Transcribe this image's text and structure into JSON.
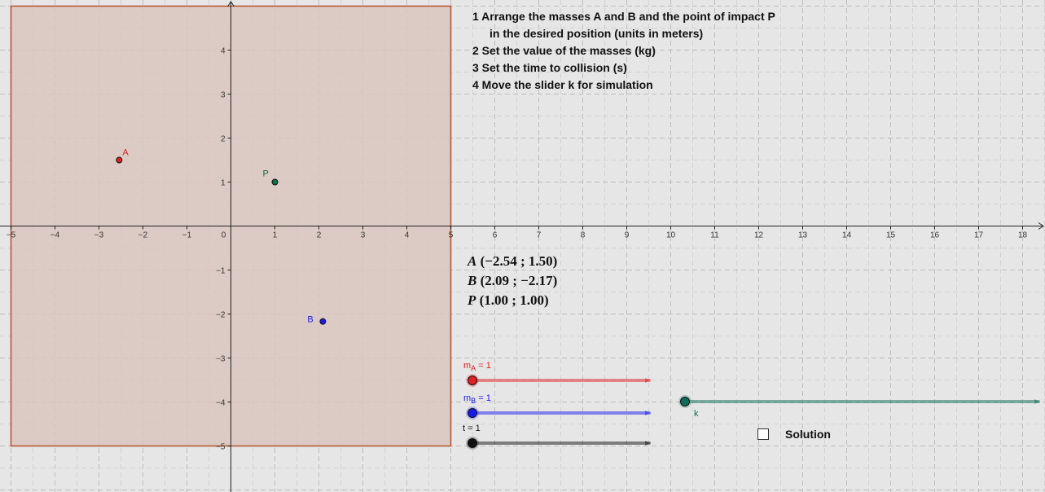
{
  "graph": {
    "x_ticks": [
      "−5",
      "−4",
      "−3",
      "−2",
      "−1",
      "0",
      "1",
      "2",
      "3",
      "4",
      "5",
      "6",
      "7",
      "8",
      "9",
      "10",
      "11",
      "12",
      "13",
      "14",
      "15",
      "16",
      "17",
      "18"
    ],
    "y_ticks": [
      "4",
      "3",
      "2",
      "1",
      "−1",
      "−2",
      "−3",
      "−4",
      "−5"
    ],
    "region_color": "#d9c5bd",
    "region_border_color": "#b5502a"
  },
  "points": [
    {
      "label": "A",
      "x": -2.54,
      "y": 1.5,
      "color": "#e02020"
    },
    {
      "label": "P",
      "x": 1.0,
      "y": 1.0,
      "color": "#0f6e4a"
    },
    {
      "label": "B",
      "x": 2.09,
      "y": -2.17,
      "color": "#1a1aee"
    }
  ],
  "instructions": [
    "1 Arrange the masses A and B and the point of impact P",
    "in the desired position (units in meters)",
    "2 Set the value of the masses (kg)",
    "3 Set the time to collision (s)",
    "4 Move the slider k for simulation"
  ],
  "coordinates": [
    {
      "name": "A",
      "value": "(−2.54 ; 1.50)"
    },
    {
      "name": "B",
      "value": "(2.09 ; −2.17)"
    },
    {
      "name": "P",
      "value": "(1.00 ; 1.00)"
    }
  ],
  "sliders": [
    {
      "var": "m",
      "sub": "A",
      "value": "= 1",
      "color": "#e02020",
      "level": 0
    },
    {
      "var": "m",
      "sub": "B",
      "value": "= 1",
      "color": "#1a1aee",
      "level": 0
    },
    {
      "var": "t",
      "sub": "",
      "value": "= 1",
      "color": "#111111",
      "level": 0
    },
    {
      "var": "k",
      "sub": "",
      "value": "",
      "color": "#0f6e5a",
      "level": 0
    }
  ],
  "solution": {
    "label": "Solution",
    "checked": false
  }
}
